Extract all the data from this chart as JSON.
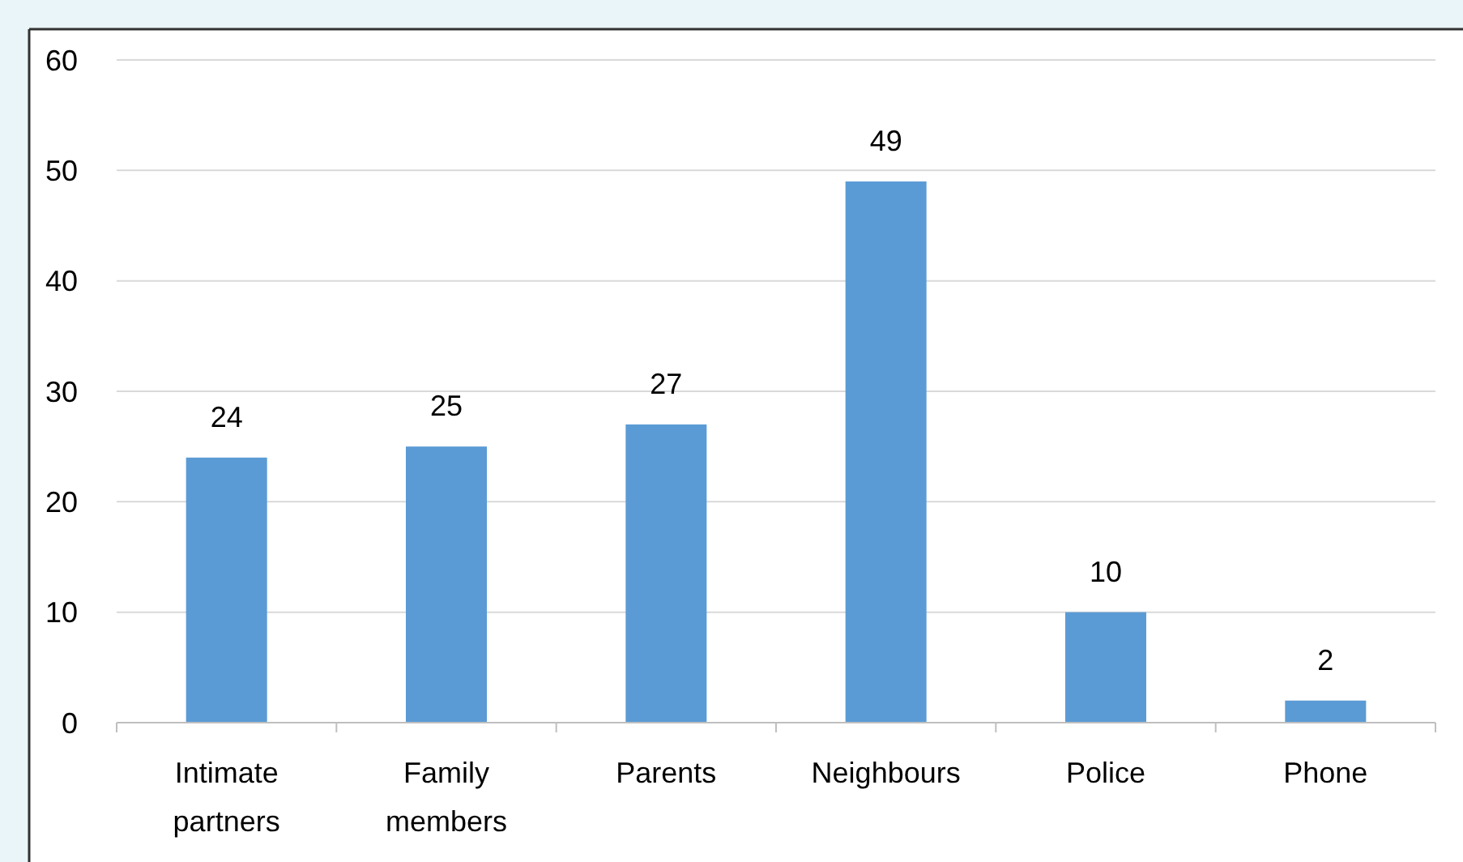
{
  "chart_data": {
    "type": "bar",
    "categories": [
      "Intimate partners",
      "Family members",
      "Parents",
      "Neighbours",
      "Police",
      "Phone"
    ],
    "values": [
      24,
      25,
      27,
      49,
      10,
      2
    ],
    "color": "#5b9bd5",
    "ylim": [
      0,
      60
    ],
    "yticks": [
      0,
      10,
      20,
      30,
      40,
      50,
      60
    ],
    "grid": "y",
    "data_labels": true
  }
}
